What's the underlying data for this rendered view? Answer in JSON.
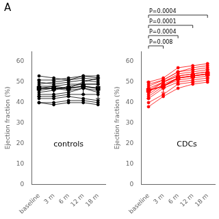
{
  "chart_data": [
    {
      "type": "line",
      "title": "A",
      "categories": [
        "baseline",
        "3 m",
        "6 m",
        "12 m",
        "18 m"
      ],
      "ylabel": "Ejection fraction (%)",
      "ylim": [
        0,
        65
      ],
      "yticks": [
        0,
        10,
        20,
        30,
        40,
        50,
        60
      ],
      "grid": false,
      "annotations": [
        {
          "text": "controls"
        }
      ],
      "series": [
        {
          "color": "#000000",
          "marker": "circle",
          "values": [
            53,
            52,
            51,
            53,
            52
          ]
        },
        {
          "color": "#000000",
          "marker": "circle",
          "values": [
            51,
            51,
            52,
            53,
            53
          ]
        },
        {
          "color": "#000000",
          "marker": "circle",
          "values": [
            50,
            49,
            50,
            51,
            50
          ]
        },
        {
          "color": "#000000",
          "marker": "circle",
          "values": [
            49,
            50,
            51,
            52,
            51
          ]
        },
        {
          "color": "#000000",
          "marker": "circle",
          "values": [
            48,
            48,
            49,
            49,
            49
          ]
        },
        {
          "color": "#000000",
          "marker": "circle",
          "values": [
            47,
            48,
            47,
            50,
            52
          ]
        },
        {
          "color": "#000000",
          "marker": "circle",
          "values": [
            46,
            47,
            46,
            47,
            46
          ]
        },
        {
          "color": "#000000",
          "marker": "circle",
          "values": [
            45,
            46,
            48,
            49,
            49
          ]
        },
        {
          "color": "#000000",
          "marker": "circle",
          "values": [
            44,
            44,
            45,
            47,
            45
          ]
        },
        {
          "color": "#000000",
          "marker": "circle",
          "values": [
            43,
            43,
            44,
            44,
            44
          ]
        },
        {
          "color": "#000000",
          "marker": "circle",
          "values": [
            42,
            42,
            43,
            42,
            41
          ]
        },
        {
          "color": "#000000",
          "marker": "circle",
          "values": [
            40,
            40,
            41,
            41,
            40
          ]
        },
        {
          "color": "#000000",
          "marker": "circle",
          "values": [
            40,
            39,
            40,
            40,
            39
          ]
        },
        {
          "color": "#000000",
          "marker": "square",
          "values": [
            47,
            47,
            47,
            48,
            47
          ],
          "error": [
            4,
            4,
            4,
            4,
            5
          ]
        }
      ]
    },
    {
      "type": "line",
      "categories": [
        "baseline",
        "3 m",
        "6 m",
        "12 m",
        "18 m"
      ],
      "ylabel": "Ejection fraction (%)",
      "ylim": [
        0,
        65
      ],
      "yticks": [
        0,
        10,
        20,
        30,
        40,
        50,
        60
      ],
      "grid": false,
      "annotations": [
        {
          "text": "CDCs"
        }
      ],
      "brackets": [
        {
          "label": "P=0.0004",
          "from": "baseline",
          "to": "18 m"
        },
        {
          "label": "P=0.0001",
          "from": "baseline",
          "to": "12 m"
        },
        {
          "label": "P=0.0004",
          "from": "baseline",
          "to": "6 m"
        },
        {
          "label": "P=0.008",
          "from": "baseline",
          "to": "3 m"
        }
      ],
      "series": [
        {
          "color": "#ff0000",
          "marker": "circle",
          "values": [
            50,
            52,
            57,
            58,
            59
          ]
        },
        {
          "color": "#ff0000",
          "marker": "circle",
          "values": [
            49,
            51,
            55,
            57,
            58
          ]
        },
        {
          "color": "#ff0000",
          "marker": "circle",
          "values": [
            48,
            51,
            55,
            56,
            57
          ]
        },
        {
          "color": "#ff0000",
          "marker": "circle",
          "values": [
            47,
            50,
            54,
            55,
            56
          ]
        },
        {
          "color": "#ff0000",
          "marker": "circle",
          "values": [
            46,
            50,
            53,
            54,
            55
          ]
        },
        {
          "color": "#ff0000",
          "marker": "circle",
          "values": [
            45,
            50,
            53,
            54,
            55
          ]
        },
        {
          "color": "#ff0000",
          "marker": "circle",
          "values": [
            44,
            49,
            52,
            53,
            54
          ]
        },
        {
          "color": "#ff0000",
          "marker": "circle",
          "values": [
            43,
            48,
            51,
            52,
            53
          ]
        },
        {
          "color": "#ff0000",
          "marker": "circle",
          "values": [
            42,
            47,
            50,
            51,
            52
          ]
        },
        {
          "color": "#ff0000",
          "marker": "circle",
          "values": [
            40,
            44,
            49,
            50,
            51
          ]
        },
        {
          "color": "#ff0000",
          "marker": "circle",
          "values": [
            38,
            43,
            47,
            49,
            50
          ]
        },
        {
          "color": "#ff0000",
          "marker": "square",
          "values": [
            46,
            48,
            52,
            53,
            54
          ],
          "error": [
            4,
            3,
            3,
            3,
            2
          ]
        }
      ]
    }
  ]
}
